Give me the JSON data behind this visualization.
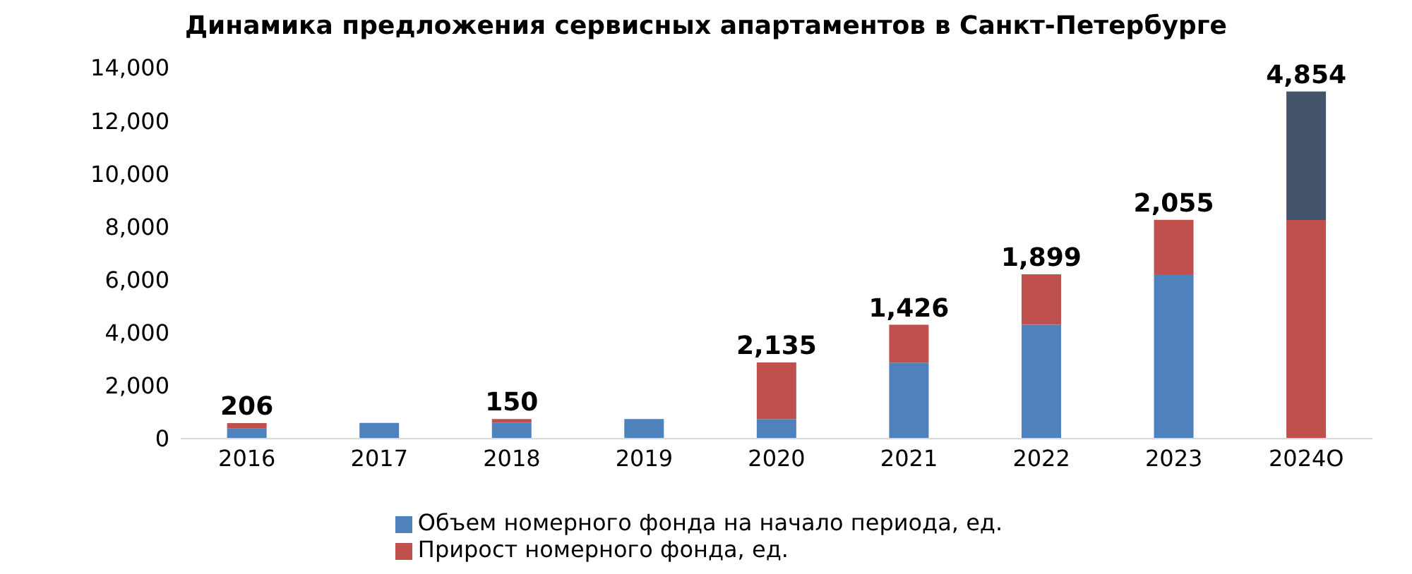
{
  "chart_data": {
    "type": "bar",
    "title": "Динамика предложения сервисных апартаментов в Санкт-Петербурге",
    "categories": [
      "2016",
      "2017",
      "2018",
      "2019",
      "2020",
      "2021",
      "2022",
      "2023",
      "2024О"
    ],
    "stacked": true,
    "series": [
      {
        "name": "Объем номерного фонда на начало периода, ед.",
        "color": "#4f81bd",
        "colors": [
          "#4f81bd",
          "#4f81bd",
          "#4f81bd",
          "#4f81bd",
          "#4f81bd",
          "#4f81bd",
          "#4f81bd",
          "#4f81bd",
          "#c0504d"
        ],
        "values": [
          380,
          590,
          590,
          740,
          740,
          2870,
          4300,
          6200,
          8250
        ]
      },
      {
        "name": "Прирост номерного фонда, ед.",
        "color": "#c0504d",
        "colors": [
          "#c0504d",
          "#c0504d",
          "#c0504d",
          "#c0504d",
          "#c0504d",
          "#c0504d",
          "#c0504d",
          "#c0504d",
          "#44546a"
        ],
        "values": [
          206,
          0,
          150,
          0,
          2135,
          1426,
          1899,
          2055,
          4854
        ],
        "value_labels": [
          "206",
          null,
          "150",
          null,
          "2,135",
          "1,426",
          "1,899",
          "2,055",
          "4,854"
        ]
      }
    ],
    "ylim": [
      0,
      14000
    ],
    "yticks": [
      0,
      {
        "value": 2000,
        "label": "2,000"
      },
      {
        "value": 4000,
        "label": "4,000"
      },
      {
        "value": 6000,
        "label": "6,000"
      },
      {
        "value": 8000,
        "label": "8,000"
      },
      {
        "value": 10000,
        "label": "10,000"
      },
      {
        "value": 12000,
        "label": "12,000"
      },
      {
        "value": 14000,
        "label": "14,000"
      }
    ],
    "legend": "bottom"
  }
}
